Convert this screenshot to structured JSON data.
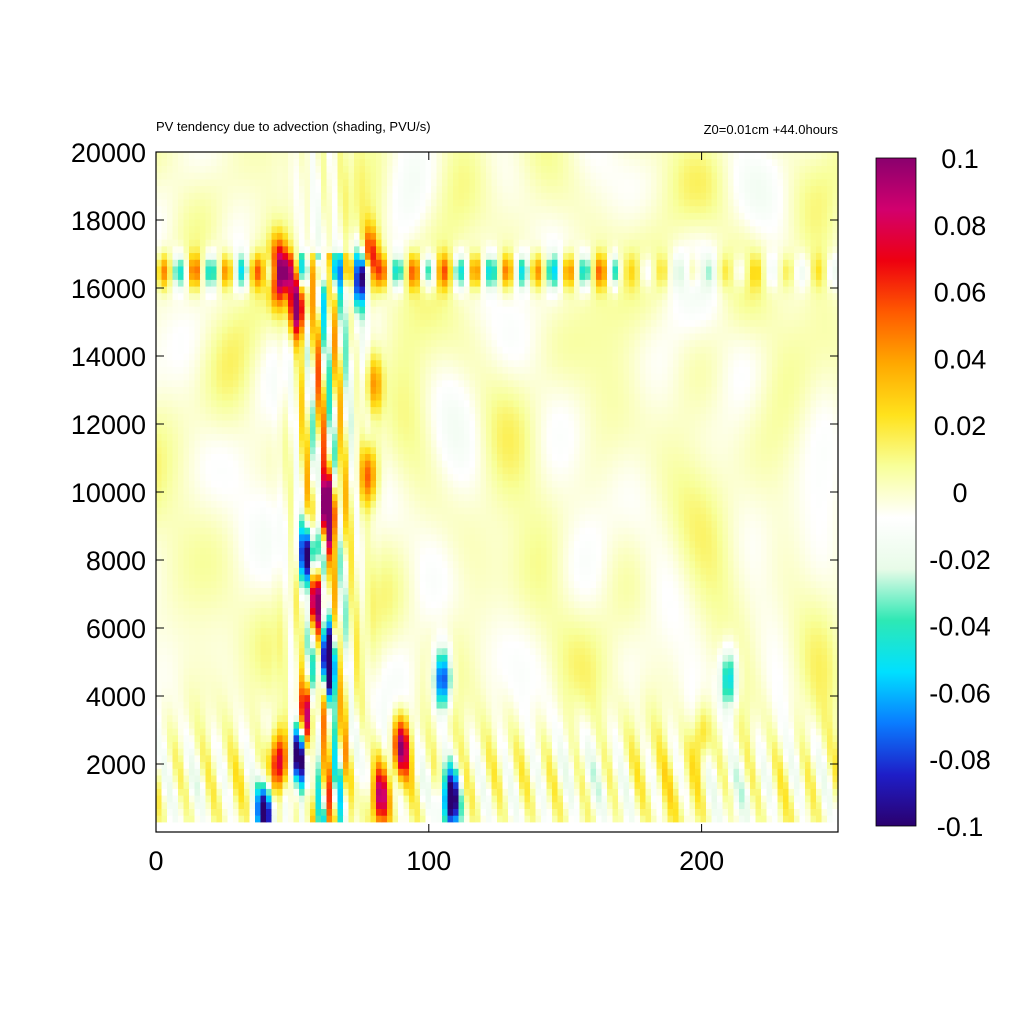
{
  "chart_data": {
    "type": "heatmap",
    "title": "PV tendency due to advection (shading, PVU/s)",
    "subtitle": "Z0=0.01cm   +44.0hours",
    "xlabel": "",
    "ylabel": "",
    "xlim": [
      0,
      250
    ],
    "ylim": [
      300,
      20000
    ],
    "x_ticks": [
      "0",
      "100",
      "200"
    ],
    "x_tick_values": [
      0,
      100,
      200
    ],
    "y_ticks": [
      "2000",
      "4000",
      "6000",
      "8000",
      "10000",
      "12000",
      "14000",
      "16000",
      "18000",
      "20000"
    ],
    "y_tick_values": [
      2000,
      4000,
      6000,
      8000,
      10000,
      12000,
      14000,
      16000,
      18000,
      20000
    ],
    "colorbar": {
      "range": [
        -0.1,
        0.1
      ],
      "ticks": [
        "0.1",
        "0.08",
        "0.06",
        "0.04",
        "0.02",
        "0",
        "-0.02",
        "-0.04",
        "-0.06",
        "-0.08",
        "-0.1"
      ],
      "tick_values": [
        0.1,
        0.08,
        0.06,
        0.04,
        0.02,
        0,
        -0.02,
        -0.04,
        -0.06,
        -0.08,
        -0.1
      ],
      "colors": [
        "#2b006e",
        "#1e1ec8",
        "#0a7cff",
        "#00e0ff",
        "#2ee8b4",
        "#e8fbe8",
        "#ffffff",
        "#f8ff9a",
        "#ffe21c",
        "#ffa800",
        "#ff5a00",
        "#ee0010",
        "#d2006e",
        "#8a006e"
      ]
    },
    "features": [
      {
        "x": 63,
        "y": 9500,
        "value": 0.1
      },
      {
        "x": 56,
        "y": 8200,
        "value": -0.1
      },
      {
        "x": 63,
        "y": 5000,
        "value": -0.1
      },
      {
        "x": 59,
        "y": 6800,
        "value": 0.08
      },
      {
        "x": 55,
        "y": 3500,
        "value": 0.06
      },
      {
        "x": 45,
        "y": 2000,
        "value": 0.09
      },
      {
        "x": 52,
        "y": 2200,
        "value": -0.09
      },
      {
        "x": 40,
        "y": 600,
        "value": -0.1
      },
      {
        "x": 45,
        "y": 16500,
        "value": 0.09
      },
      {
        "x": 52,
        "y": 15500,
        "value": 0.09
      },
      {
        "x": 75,
        "y": 16400,
        "value": -0.1
      },
      {
        "x": 78,
        "y": 16800,
        "value": 0.09
      },
      {
        "x": 80,
        "y": 13200,
        "value": 0.04
      },
      {
        "x": 78,
        "y": 10500,
        "value": 0.05
      },
      {
        "x": 105,
        "y": 4500,
        "value": -0.08
      },
      {
        "x": 108,
        "y": 900,
        "value": -0.1
      },
      {
        "x": 90,
        "y": 2500,
        "value": 0.08
      },
      {
        "x": 82,
        "y": 1000,
        "value": 0.07
      },
      {
        "x": 210,
        "y": 4500,
        "value": -0.05
      },
      {
        "x": 200,
        "y": 2800,
        "value": 0.03
      }
    ]
  }
}
